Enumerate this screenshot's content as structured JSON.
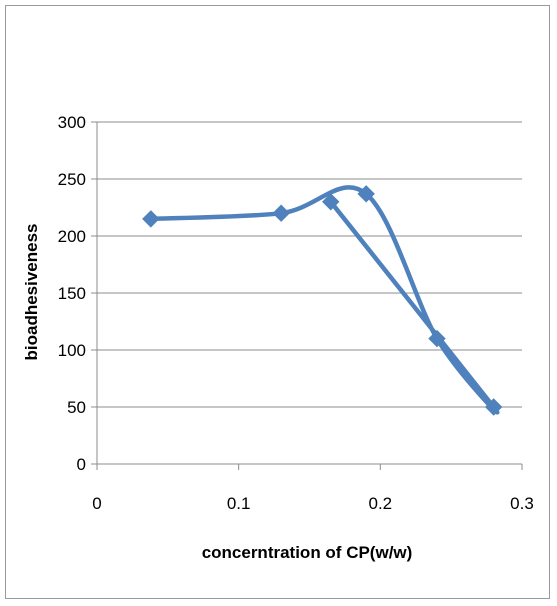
{
  "chart_data": {
    "type": "scatter",
    "style": "smoothed lines with diamond markers",
    "title": "",
    "xlabel": "concerntration of CP(w/w)",
    "ylabel": "bioadhesiveness",
    "xlim": [
      0,
      0.3
    ],
    "ylim": [
      0,
      300
    ],
    "x_ticks": [
      "0",
      "0.1",
      "0.2",
      "0.3"
    ],
    "y_ticks": [
      "0",
      "50",
      "100",
      "150",
      "200",
      "250",
      "300"
    ],
    "grid": "horizontal major gridlines",
    "legend": "none",
    "series": [
      {
        "color": "#4F81BD",
        "points": [
          {
            "x": 0.038,
            "y": 215
          },
          {
            "x": 0.13,
            "y": 220
          },
          {
            "x": 0.19,
            "y": 237
          },
          {
            "x": 0.24,
            "y": 110
          },
          {
            "x": 0.28,
            "y": 50
          },
          {
            "x": 0.165,
            "y": 230
          }
        ]
      }
    ]
  }
}
